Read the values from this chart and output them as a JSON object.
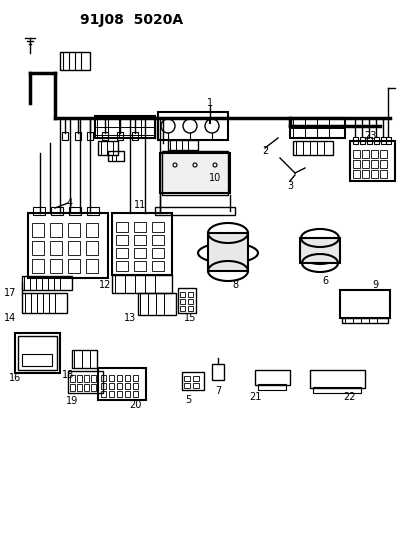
{
  "title": "91J08  5020A",
  "bg_color": "#ffffff",
  "line_color": "#000000",
  "fig_width": 4.14,
  "fig_height": 5.33,
  "dpi": 100
}
